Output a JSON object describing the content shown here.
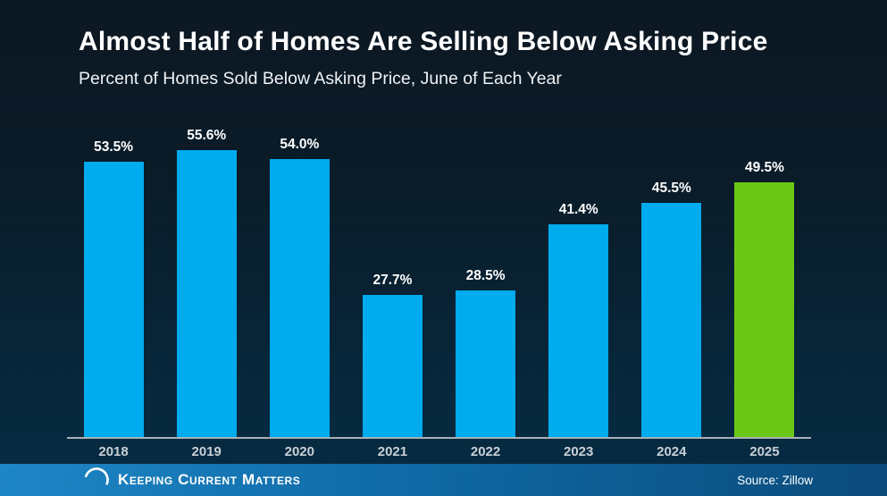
{
  "header": {
    "title": "Almost Half of Homes Are Selling Below Asking Price",
    "subtitle": "Percent of Homes Sold Below Asking Price, June of Each Year"
  },
  "chart_data": {
    "type": "bar",
    "categories": [
      "2018",
      "2019",
      "2020",
      "2021",
      "2022",
      "2023",
      "2024",
      "2025"
    ],
    "values": [
      53.5,
      55.6,
      54.0,
      27.7,
      28.5,
      41.4,
      45.5,
      49.5
    ],
    "value_labels": [
      "53.5%",
      "55.6%",
      "54.0%",
      "27.7%",
      "28.5%",
      "41.4%",
      "45.5%",
      "49.5%"
    ],
    "bar_colors": [
      "blue",
      "blue",
      "blue",
      "blue",
      "blue",
      "blue",
      "blue",
      "green"
    ],
    "title": "Almost Half of Homes Are Selling Below Asking Price",
    "xlabel": "",
    "ylabel": "",
    "unit": "%",
    "ylim": [
      0,
      60
    ],
    "grid": false,
    "legend": false,
    "highlighted_category": "2025"
  },
  "colors": {
    "background_top": "#0c1822",
    "background_bottom": "#062c44",
    "bar_blue": "#00abee",
    "bar_green": "#6cc616",
    "axis_line": "#a8b1b7",
    "text": "#ffffff",
    "footer_left": "#1f86c6",
    "footer_right": "#0b4b7b"
  },
  "footer": {
    "logo_icon": "kcm-spiral-icon",
    "brand": "Keeping Current Matters",
    "source": "Source: Zillow"
  }
}
